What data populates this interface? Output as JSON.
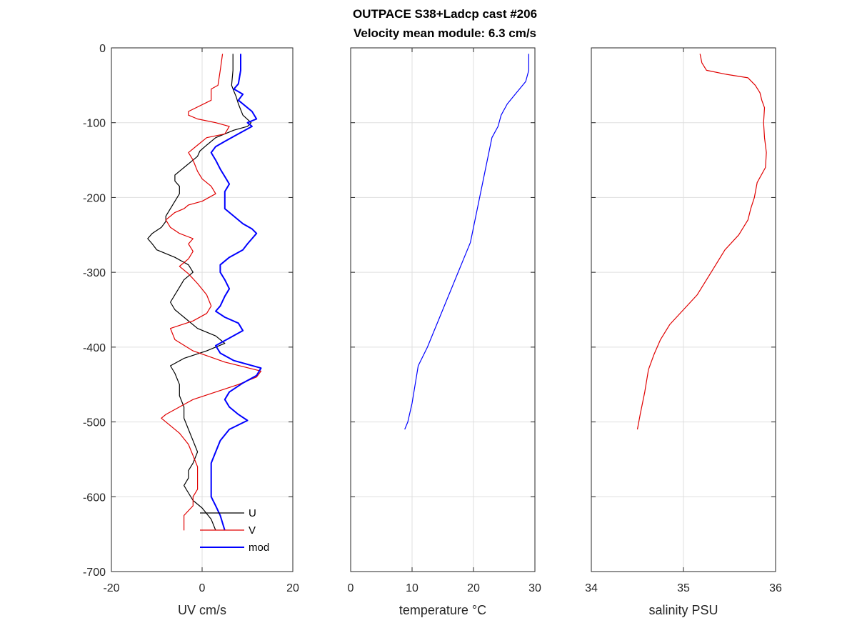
{
  "chart_data": [
    {
      "type": "line",
      "title": "OUTPACE S38+Ladcp cast #206",
      "subtitle": "Velocity mean module:  6.3 cm/s",
      "xlabel": "UV cm/s",
      "ylabel": "",
      "xlim": [
        -20,
        20
      ],
      "ylim": [
        -700,
        0
      ],
      "xticks": [
        -20,
        0,
        20
      ],
      "yticks": [
        0,
        -100,
        -200,
        -300,
        -400,
        -500,
        -600,
        -700
      ],
      "grid": true,
      "legend": {
        "placement": "bottom-center",
        "entries": [
          "U",
          "V",
          "mod"
        ]
      },
      "series": [
        {
          "name": "U",
          "color": "#000000",
          "y": [
            -8,
            -30,
            -50,
            -58,
            -65,
            -75,
            -90,
            -100,
            -105,
            -110,
            -120,
            -130,
            -138,
            -145,
            -150,
            -160,
            -170,
            -178,
            -185,
            -195,
            -205,
            -215,
            -225,
            -232,
            -240,
            -248,
            -255,
            -262,
            -270,
            -280,
            -290,
            -300,
            -310,
            -320,
            -330,
            -340,
            -350,
            -360,
            -375,
            -385,
            -395,
            -405,
            -415,
            -425,
            -435,
            -450,
            -465,
            -480,
            -495,
            -510,
            -525,
            -540,
            -555,
            -565,
            -575,
            -585,
            -595,
            -605,
            -615,
            -630,
            -645
          ],
          "x": [
            6.8,
            6.8,
            6.5,
            7,
            7.5,
            8,
            9,
            10.8,
            10,
            7,
            3,
            1,
            -0.5,
            -1,
            -2,
            -4,
            -6,
            -6,
            -5,
            -5,
            -6,
            -7,
            -8,
            -8,
            -9,
            -11,
            -12,
            -11,
            -10,
            -6,
            -3,
            -2,
            -4,
            -5,
            -6,
            -7,
            -6,
            -4,
            -1,
            3,
            5,
            1,
            -4,
            -7,
            -6,
            -5,
            -5,
            -4,
            -4,
            -3,
            -2,
            -1,
            -2,
            -3,
            -3,
            -4,
            -3,
            -2,
            0,
            2,
            3
          ]
        },
        {
          "name": "V",
          "color": "#e00000",
          "y": [
            -8,
            -30,
            -50,
            -55,
            -62,
            -70,
            -85,
            -90,
            -95,
            -100,
            -105,
            -115,
            -120,
            -130,
            -140,
            -150,
            -165,
            -175,
            -185,
            -195,
            -205,
            -210,
            -215,
            -220,
            -230,
            -240,
            -248,
            -255,
            -262,
            -272,
            -282,
            -292,
            -302,
            -315,
            -330,
            -345,
            -355,
            -365,
            -375,
            -390,
            -405,
            -420,
            -432,
            -440,
            -450,
            -460,
            -470,
            -480,
            -490,
            -495,
            -505,
            -515,
            -530,
            -545,
            -560,
            -575,
            -590,
            -600,
            -612,
            -625,
            -645
          ],
          "x": [
            4.5,
            4,
            3.5,
            2,
            2,
            2,
            -3,
            -3,
            -1,
            3,
            6,
            5,
            1,
            -1,
            -3,
            -2,
            -1,
            0,
            2,
            3,
            0,
            -3,
            -4,
            -6,
            -8,
            -7,
            -5,
            -2,
            -3,
            -2,
            -3,
            -5,
            -3,
            -1,
            1,
            2,
            1,
            -2,
            -7,
            -6,
            -2,
            5,
            13,
            12,
            8,
            3,
            -2,
            -5,
            -8,
            -9,
            -7,
            -5,
            -3,
            -2,
            -1,
            -1,
            -1,
            -2,
            -2,
            -4,
            -4
          ]
        },
        {
          "name": "mod",
          "color": "#0000ff",
          "y": [
            -8,
            -30,
            -48,
            -55,
            -62,
            -70,
            -85,
            -95,
            -100,
            -105,
            -115,
            -125,
            -132,
            -140,
            -150,
            -162,
            -172,
            -182,
            -192,
            -205,
            -215,
            -225,
            -235,
            -242,
            -248,
            -255,
            -262,
            -270,
            -280,
            -290,
            -300,
            -310,
            -322,
            -332,
            -345,
            -352,
            -360,
            -368,
            -378,
            -388,
            -398,
            -408,
            -418,
            -428,
            -438,
            -448,
            -460,
            -470,
            -480,
            -490,
            -498,
            -510,
            -525,
            -540,
            -555,
            -570,
            -585,
            -600,
            -612,
            -625,
            -645
          ],
          "x": [
            8.5,
            8.5,
            8,
            7,
            9,
            8,
            11,
            12,
            10,
            11,
            8,
            5,
            3,
            2,
            3,
            4,
            5,
            6,
            5,
            5,
            5,
            7,
            9,
            11,
            12,
            11,
            10,
            9,
            6,
            4,
            4,
            5,
            6,
            5,
            4,
            3,
            5,
            8,
            9,
            6,
            3,
            4,
            7,
            13,
            12,
            9,
            6,
            5,
            6,
            8,
            10,
            6,
            4,
            3,
            2,
            2,
            2,
            2,
            3,
            4,
            5
          ]
        }
      ]
    },
    {
      "type": "line",
      "xlabel": "temperature °C",
      "ylabel": "",
      "xlim": [
        0,
        30
      ],
      "ylim": [
        -700,
        0
      ],
      "xticks": [
        0,
        10,
        20,
        30
      ],
      "grid": true,
      "series": [
        {
          "color": "#0000ff",
          "y": [
            -8,
            -30,
            -45,
            -60,
            -75,
            -90,
            -105,
            -120,
            -140,
            -160,
            -180,
            -200,
            -220,
            -240,
            -260,
            -280,
            -300,
            -320,
            -340,
            -360,
            -380,
            -400,
            -425,
            -450,
            -475,
            -500,
            -510
          ],
          "x": [
            29,
            29,
            28.5,
            27,
            25.5,
            24.5,
            24,
            23,
            22.5,
            22,
            21.5,
            21,
            20.5,
            20,
            19.5,
            18.5,
            17.5,
            16.5,
            15.5,
            14.5,
            13.5,
            12.5,
            11,
            10.5,
            10,
            9.3,
            8.8
          ]
        }
      ]
    },
    {
      "type": "line",
      "xlabel": "salinity PSU",
      "ylabel": "",
      "xlim": [
        34,
        36
      ],
      "ylim": [
        -700,
        0
      ],
      "xticks": [
        34,
        35,
        36
      ],
      "grid": true,
      "series": [
        {
          "color": "#e00000",
          "y": [
            -8,
            -20,
            -30,
            -35,
            -40,
            -50,
            -60,
            -70,
            -80,
            -100,
            -120,
            -140,
            -160,
            -180,
            -200,
            -215,
            -230,
            -250,
            -270,
            -290,
            -310,
            -330,
            -350,
            -370,
            -390,
            -410,
            -430,
            -460,
            -490,
            -510
          ],
          "x": [
            35.18,
            35.2,
            35.25,
            35.45,
            35.7,
            35.78,
            35.83,
            35.85,
            35.88,
            35.87,
            35.88,
            35.9,
            35.89,
            35.8,
            35.77,
            35.73,
            35.7,
            35.6,
            35.45,
            35.35,
            35.25,
            35.15,
            35.0,
            34.85,
            34.75,
            34.68,
            34.62,
            34.58,
            34.53,
            34.5
          ]
        }
      ]
    }
  ]
}
